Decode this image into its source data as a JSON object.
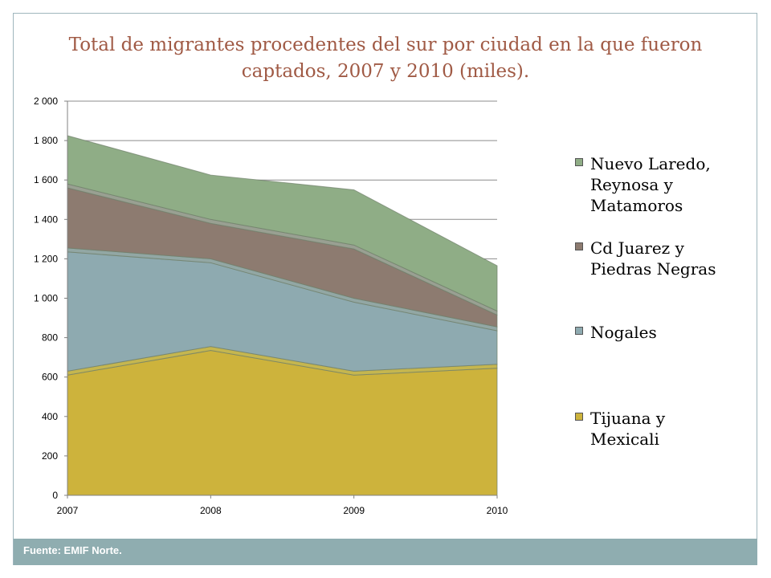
{
  "chart_data": {
    "type": "area",
    "stacked": true,
    "title": "Total de migrantes procedentes del sur por ciudad en la que fueron captados, 2007 y 2010 (miles).",
    "x": [
      "2007",
      "2008",
      "2009",
      "2010"
    ],
    "ylim": [
      0,
      2000
    ],
    "yticks": [
      0,
      200,
      400,
      600,
      800,
      1000,
      1200,
      1400,
      1600,
      1800,
      2000
    ],
    "ytick_labels": [
      "0",
      "200",
      "400",
      "600",
      "800",
      "1 000",
      "1 200",
      "1 400",
      "1 600",
      "1 800",
      "2 000"
    ],
    "grid": true,
    "legend_position": "right",
    "series": [
      {
        "name": "Tijuana y Mexicali",
        "values": [
          610,
          735,
          610,
          645
        ],
        "color": "#cdb33c"
      },
      {
        "name": "Tijuana y Mexicali (2)",
        "values": [
          20,
          20,
          20,
          20
        ],
        "color": "#c5b64f",
        "show_in_legend": false
      },
      {
        "name": "Nogales",
        "values": [
          605,
          425,
          350,
          170
        ],
        "color": "#8eaab0"
      },
      {
        "name": "Nogales (2)",
        "values": [
          20,
          20,
          20,
          20
        ],
        "color": "#92a7a4",
        "show_in_legend": false
      },
      {
        "name": "Cd Juarez y Piedras Negras",
        "values": [
          305,
          180,
          250,
          60
        ],
        "color": "#8d7b70"
      },
      {
        "name": "Cd Juarez y Piedras Negras (2)",
        "values": [
          20,
          20,
          20,
          20
        ],
        "color": "#99a092",
        "show_in_legend": false
      },
      {
        "name": "Nuevo Laredo, Reynosa y Matamoros",
        "values": [
          245,
          225,
          280,
          230
        ],
        "color": "#8fad86"
      }
    ]
  },
  "legend": {
    "items": [
      {
        "lines": [
          "Nuevo Laredo,",
          "Reynosa y",
          "Matamoros"
        ],
        "color": "#8fad86"
      },
      {
        "lines": [
          "Cd Juarez y",
          "Piedras Negras"
        ],
        "color": "#8d7b70"
      },
      {
        "lines": [
          "Nogales"
        ],
        "color": "#8eaab0"
      },
      {
        "lines": [
          "Tijuana y",
          "Mexicali"
        ],
        "color": "#cdb33c"
      }
    ]
  },
  "footer": {
    "source": "Fuente: EMIF Norte."
  },
  "colors": {
    "title": "#a05a45",
    "footer_bg": "#8fadb0",
    "frame": "#9fb6bd"
  }
}
